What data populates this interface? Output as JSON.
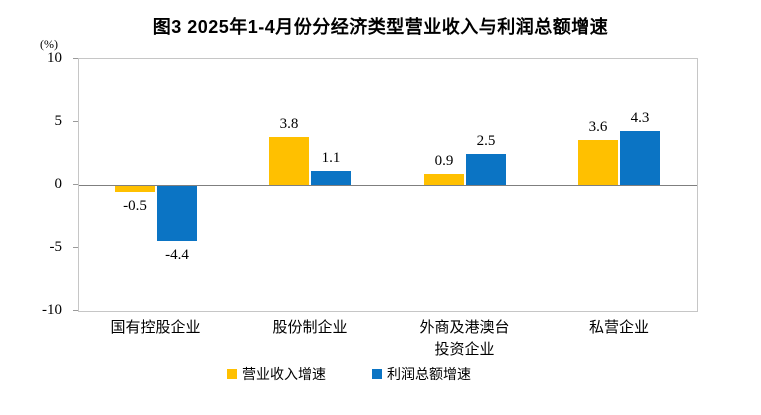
{
  "chart_data": {
    "type": "bar",
    "title": "图3 2025年1-4月份分经济类型营业收入与利润总额增速",
    "unit_label": "(%)",
    "categories": [
      "国有控股企业",
      "股份制企业",
      "外商及港澳台\n投资企业",
      "私营企业"
    ],
    "series": [
      {
        "name": "营业收入增速",
        "color": "#FFC000",
        "values": [
          -0.5,
          3.8,
          0.9,
          3.6
        ]
      },
      {
        "name": "利润总额增速",
        "color": "#0B74C4",
        "values": [
          -4.4,
          1.1,
          2.5,
          4.3
        ]
      }
    ],
    "ylim": [
      -10,
      10
    ],
    "yticks": [
      10,
      5,
      0,
      -5,
      -10
    ],
    "grid": false,
    "legend_position": "bottom",
    "colors": {
      "plot_border": "#c6c6c6",
      "zero_axis": "#7f7f7f",
      "text": "#000000"
    }
  }
}
